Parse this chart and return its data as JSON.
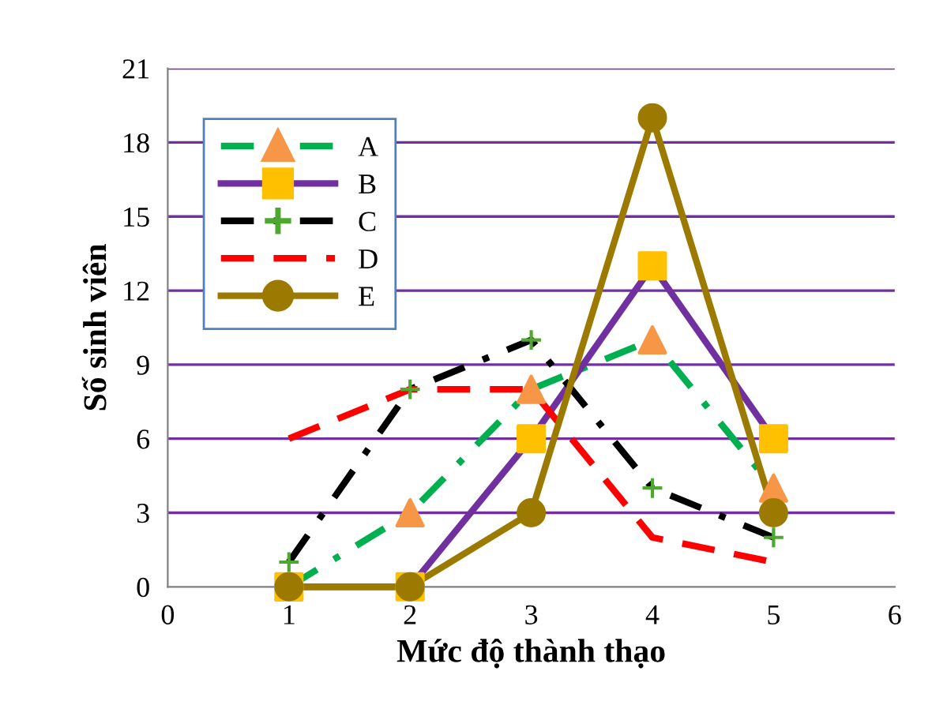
{
  "chart_data": {
    "type": "line",
    "xlabel": "Mức độ thành thạo",
    "ylabel": "Số sinh viên",
    "x": [
      1,
      2,
      3,
      4,
      5
    ],
    "xlim": [
      0,
      6
    ],
    "xticks": [
      0,
      1,
      2,
      3,
      4,
      5,
      6
    ],
    "ylim": [
      0,
      21
    ],
    "yticks": [
      0,
      3,
      6,
      9,
      12,
      15,
      18,
      21
    ],
    "grid": "y",
    "legend": "top left",
    "series": [
      {
        "name": "A",
        "color": "#00b050",
        "marker": "triangle",
        "colors": [
          "#f79646",
          "#f79646",
          "#f79646",
          "#f79646",
          "#f79646"
        ],
        "line_style": "dashdot",
        "values": [
          0,
          3,
          8,
          10,
          4
        ]
      },
      {
        "name": "B",
        "color": "#7030a0",
        "marker": "square",
        "colors": [
          "#ffc000",
          "#ffc000",
          "#ffc000",
          "#ffc000",
          "#ffc000"
        ],
        "line_style": "solid",
        "values": [
          0,
          0,
          6,
          13,
          6
        ]
      },
      {
        "name": "C",
        "color": "#000000",
        "marker": "cross",
        "colors": [
          "#4ea72e",
          "#4ea72e",
          "#4ea72e",
          "#4ea72e",
          "#4ea72e"
        ],
        "line_style": "dashdot",
        "values": [
          1,
          8,
          10,
          4,
          2
        ]
      },
      {
        "name": "D",
        "color": "#ff0000",
        "marker": "none",
        "line_style": "dashed",
        "values": [
          6,
          8,
          8,
          2,
          1
        ]
      },
      {
        "name": "E",
        "color": "#9c7a00",
        "marker": "circle",
        "colors": [
          "#9c7a00",
          "#9c7a00",
          "#9c7a00",
          "#9c7a00",
          "#9c7a00"
        ],
        "line_style": "solid",
        "values": [
          0,
          0,
          3,
          19,
          3
        ]
      }
    ]
  }
}
